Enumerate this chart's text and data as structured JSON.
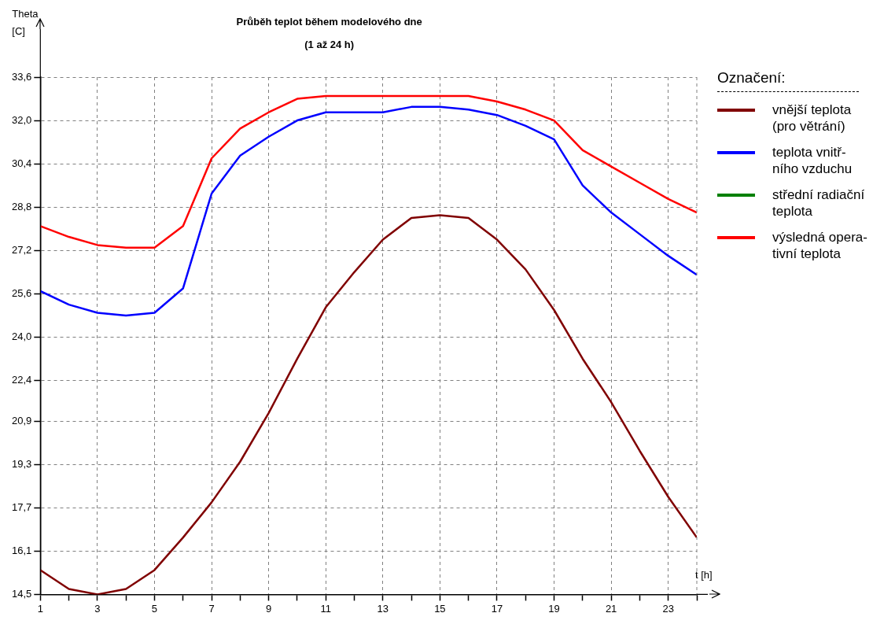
{
  "chart_data": {
    "type": "line",
    "title": "Průběh teplot během modelového dne",
    "subtitle": "(1 až 24 h)",
    "xlabel": "t [h]",
    "ylabel": "Theta [C]",
    "legend_title": "Označení:",
    "legend": "right",
    "grid": true,
    "x": [
      1,
      2,
      3,
      4,
      5,
      6,
      7,
      8,
      9,
      10,
      11,
      12,
      13,
      14,
      15,
      16,
      17,
      18,
      19,
      20,
      21,
      22,
      23,
      24
    ],
    "xlim": [
      1,
      24
    ],
    "xticks": [
      1,
      {
        "value": 2,
        "label": null
      },
      3,
      {
        "value": 4,
        "label": null
      },
      5,
      {
        "value": 6,
        "label": null
      },
      7,
      {
        "value": 8,
        "label": null
      },
      9,
      {
        "value": 10,
        "label": null
      },
      11,
      {
        "value": 12,
        "label": null
      },
      13,
      {
        "value": 14,
        "label": null
      },
      15,
      {
        "value": 16,
        "label": null
      },
      17,
      {
        "value": 18,
        "label": null
      },
      19,
      {
        "value": 20,
        "label": null
      },
      21,
      {
        "value": 22,
        "label": null
      },
      23,
      {
        "value": 24,
        "label": null
      }
    ],
    "ylim": [
      14.5,
      33.6
    ],
    "yticks": [
      {
        "value": 14.5,
        "label": "14,5"
      },
      {
        "value": 16.1,
        "label": "16,1"
      },
      {
        "value": 17.7,
        "label": "17,7"
      },
      {
        "value": 19.3,
        "label": "19,3"
      },
      {
        "value": 20.9,
        "label": "20,9"
      },
      {
        "value": 22.4,
        "label": "22,4"
      },
      {
        "value": 24.0,
        "label": "24,0"
      },
      {
        "value": 25.6,
        "label": "25,6"
      },
      {
        "value": 27.2,
        "label": "27,2"
      },
      {
        "value": 28.8,
        "label": "28,8"
      },
      {
        "value": 30.4,
        "label": "30,4"
      },
      {
        "value": 32.0,
        "label": "32,0"
      },
      {
        "value": 33.6,
        "label": "33,6"
      }
    ],
    "series": [
      {
        "name": "vnější teplota\n(pro větrání)",
        "color": "#800000",
        "values": [
          15.4,
          14.7,
          14.5,
          14.7,
          15.4,
          16.6,
          17.9,
          19.4,
          21.2,
          23.2,
          25.1,
          26.4,
          27.6,
          28.4,
          28.5,
          28.4,
          27.6,
          26.5,
          25.0,
          23.2,
          21.6,
          19.8,
          18.1,
          16.6
        ]
      },
      {
        "name": "teplota vnitř-\nního vzduchu",
        "color": "#0000ff",
        "values": [
          25.7,
          25.2,
          24.9,
          24.8,
          24.9,
          25.8,
          29.3,
          30.7,
          31.4,
          32.0,
          32.3,
          32.3,
          32.3,
          32.5,
          32.5,
          32.4,
          32.2,
          31.8,
          31.3,
          29.6,
          28.6,
          27.8,
          27.0,
          26.3
        ]
      },
      {
        "name": "střední radiační\nteplota",
        "color": "#008000",
        "values": [
          null,
          null,
          null,
          null,
          null,
          null,
          null,
          null,
          null,
          null,
          null,
          null,
          null,
          null,
          null,
          null,
          null,
          null,
          null,
          null,
          null,
          null,
          null,
          null
        ]
      },
      {
        "name": "výsledná opera-\ntivní teplota",
        "color": "#ff0000",
        "values": [
          28.1,
          27.7,
          27.4,
          27.3,
          27.3,
          28.1,
          30.6,
          31.7,
          32.3,
          32.8,
          32.9,
          32.9,
          32.9,
          32.9,
          32.9,
          32.9,
          32.7,
          32.4,
          32.0,
          30.9,
          30.3,
          29.7,
          29.1,
          28.6
        ]
      }
    ]
  }
}
